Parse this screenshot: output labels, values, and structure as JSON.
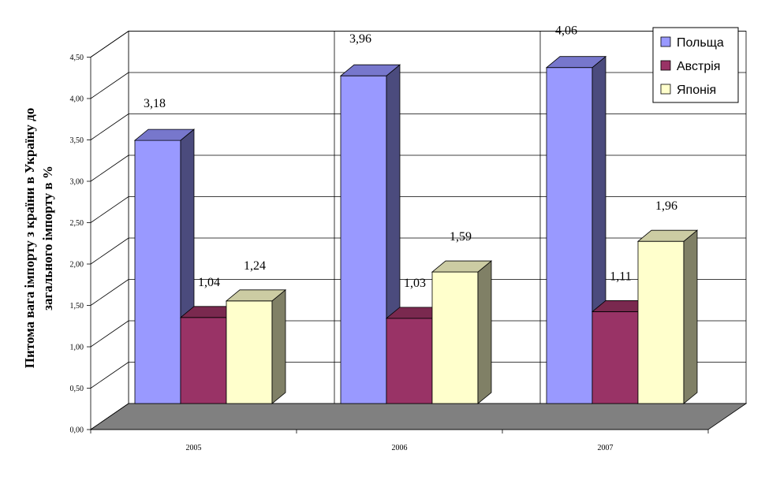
{
  "chart_data": {
    "type": "bar",
    "title": "",
    "xlabel": "",
    "ylabel_line1": "Питома вага імпорту з країни в Україну до",
    "ylabel_line2": "загального імпорту в %",
    "categories": [
      "2005",
      "2006",
      "2007"
    ],
    "ylim": [
      0,
      4.5
    ],
    "yticks": [
      "0,00",
      "0,50",
      "1,00",
      "1,50",
      "2,00",
      "2,50",
      "3,00",
      "3,50",
      "4,00",
      "4,50"
    ],
    "grid": true,
    "legend_position": "top-right",
    "series": [
      {
        "name": "Польща",
        "values": [
          3.18,
          3.96,
          4.06
        ],
        "labels": [
          "3,18",
          "3,96",
          "4,06"
        ],
        "color": "#9999ff",
        "side": "#4b4b7d",
        "top": "#7777cc"
      },
      {
        "name": "Австрія",
        "values": [
          1.04,
          1.03,
          1.11
        ],
        "labels": [
          "1,04",
          "1,03",
          "1,11"
        ],
        "color": "#993366",
        "side": "#4d1a33",
        "top": "#7a294f"
      },
      {
        "name": "Японія",
        "values": [
          1.24,
          1.59,
          1.96
        ],
        "labels": [
          "1,24",
          "1,59",
          "1,96"
        ],
        "color": "#ffffcc",
        "side": "#808066",
        "top": "#cccca3"
      }
    ]
  }
}
